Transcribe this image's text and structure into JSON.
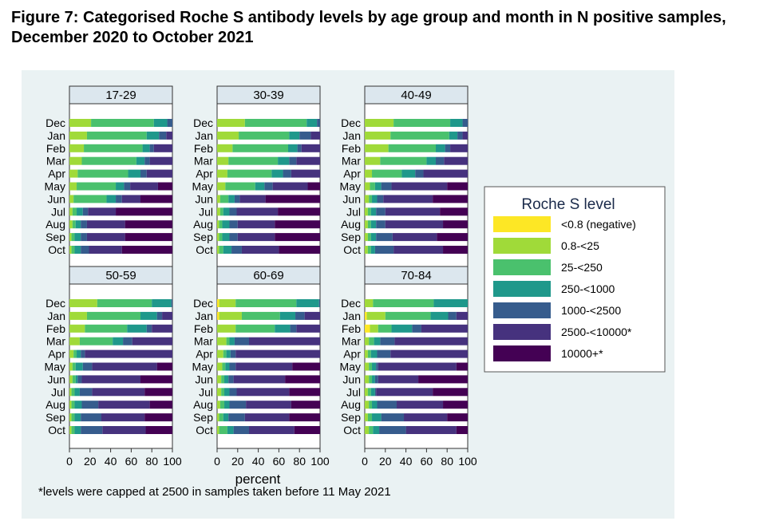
{
  "figure": {
    "title": "Figure 7: Categorised Roche S antibody levels by age group and month in N positive samples, December 2020 to October 2021",
    "footnote": "*levels were capped at 2500 in samples taken before 11 May 2021"
  },
  "chart_data": {
    "type": "bar",
    "orientation": "horizontal",
    "stacked": true,
    "title": "Figure 7: Categorised Roche S antibody levels by age group and month in N positive samples, December 2020 to October 2021",
    "xlabel": "percent",
    "xlim": [
      0,
      100
    ],
    "xticks": [
      0,
      20,
      40,
      60,
      80,
      100
    ],
    "grid": false,
    "legend_title": "Roche S level",
    "legend_position": "right",
    "categories": [
      "Dec",
      "Jan",
      "Feb",
      "Mar",
      "Apr",
      "May",
      "Jun",
      "Jul",
      "Aug",
      "Sep",
      "Oct"
    ],
    "levels": [
      {
        "name": "<0.8 (negative)",
        "color": "#fde725"
      },
      {
        "name": "0.8-<25",
        "color": "#a0da39"
      },
      {
        "name": "25-<250",
        "color": "#4ac16d"
      },
      {
        "name": "250-<1000",
        "color": "#1f988b"
      },
      {
        "name": "1000-<2500",
        "color": "#365c8d"
      },
      {
        "name": "2500-<10000*",
        "color": "#46327e"
      },
      {
        "name": "10000+*",
        "color": "#440154"
      }
    ],
    "panels": [
      {
        "name": "17-29",
        "values": [
          [
            0,
            21,
            61,
            13,
            5,
            0,
            0
          ],
          [
            0,
            17,
            58,
            12,
            7,
            6,
            0
          ],
          [
            0,
            14,
            57,
            7,
            4,
            18,
            0
          ],
          [
            0,
            12,
            53,
            8,
            5,
            22,
            0
          ],
          [
            0,
            8,
            49,
            12,
            6,
            25,
            0
          ],
          [
            0,
            7,
            38,
            8,
            6,
            27,
            14
          ],
          [
            0,
            4,
            32,
            9,
            6,
            18,
            31
          ],
          [
            0,
            3,
            4,
            6,
            5,
            27,
            55
          ],
          [
            0,
            3,
            3,
            5,
            6,
            37,
            46
          ],
          [
            0,
            2,
            3,
            6,
            6,
            37,
            46
          ],
          [
            0,
            2,
            3,
            6,
            8,
            32,
            49
          ]
        ]
      },
      {
        "name": "30-39",
        "values": [
          [
            0,
            27,
            60,
            10,
            3,
            0,
            0
          ],
          [
            0,
            21,
            49,
            10,
            11,
            9,
            0
          ],
          [
            0,
            15,
            54,
            9,
            4,
            18,
            0
          ],
          [
            0,
            11,
            48,
            11,
            7,
            23,
            0
          ],
          [
            0,
            10,
            43,
            11,
            8,
            28,
            0
          ],
          [
            0,
            8,
            29,
            9,
            8,
            34,
            12
          ],
          [
            0,
            3,
            8,
            6,
            5,
            25,
            53
          ],
          [
            0,
            3,
            3,
            6,
            7,
            40,
            41
          ],
          [
            0,
            2,
            3,
            7,
            8,
            36,
            44
          ],
          [
            0,
            2,
            3,
            7,
            8,
            36,
            44
          ],
          [
            0,
            2,
            4,
            8,
            10,
            36,
            40
          ]
        ]
      },
      {
        "name": "40-49",
        "values": [
          [
            0,
            28,
            55,
            12,
            5,
            0,
            0
          ],
          [
            0,
            25,
            57,
            8,
            5,
            5,
            0
          ],
          [
            0,
            23,
            46,
            9,
            5,
            17,
            0
          ],
          [
            0,
            15,
            45,
            9,
            8,
            23,
            0
          ],
          [
            0,
            7,
            29,
            13,
            8,
            43,
            0
          ],
          [
            0,
            5,
            5,
            6,
            10,
            54,
            20
          ],
          [
            0,
            4,
            3,
            5,
            6,
            48,
            34
          ],
          [
            0,
            3,
            3,
            5,
            9,
            53,
            27
          ],
          [
            0,
            3,
            3,
            5,
            9,
            56,
            24
          ],
          [
            0,
            3,
            3,
            5,
            16,
            43,
            30
          ],
          [
            0,
            3,
            3,
            4,
            18,
            48,
            24
          ]
        ]
      },
      {
        "name": "50-59",
        "values": [
          [
            0,
            27,
            53,
            19,
            1,
            0,
            0
          ],
          [
            0,
            17,
            52,
            16,
            5,
            10,
            0
          ],
          [
            0,
            15,
            41,
            19,
            5,
            20,
            0
          ],
          [
            0,
            10,
            32,
            10,
            9,
            39,
            0
          ],
          [
            0,
            4,
            3,
            4,
            4,
            85,
            0
          ],
          [
            0,
            3,
            3,
            7,
            9,
            63,
            15
          ],
          [
            0,
            3,
            3,
            2,
            4,
            57,
            31
          ],
          [
            0,
            2,
            3,
            5,
            12,
            51,
            27
          ],
          [
            0,
            2,
            3,
            7,
            16,
            50,
            22
          ],
          [
            0,
            2,
            3,
            6,
            20,
            42,
            27
          ],
          [
            0,
            2,
            3,
            6,
            21,
            42,
            26
          ]
        ]
      },
      {
        "name": "60-69",
        "values": [
          [
            2,
            16,
            59,
            22,
            1,
            0,
            0
          ],
          [
            2,
            22,
            37,
            15,
            9,
            15,
            0
          ],
          [
            0,
            18,
            38,
            15,
            6,
            23,
            0
          ],
          [
            0,
            9,
            3,
            5,
            14,
            69,
            0
          ],
          [
            0,
            6,
            3,
            4,
            5,
            82,
            0
          ],
          [
            0,
            5,
            3,
            4,
            6,
            55,
            27
          ],
          [
            0,
            4,
            3,
            4,
            5,
            50,
            34
          ],
          [
            0,
            4,
            3,
            5,
            7,
            51,
            30
          ],
          [
            0,
            3,
            4,
            5,
            16,
            44,
            28
          ],
          [
            0,
            2,
            4,
            5,
            16,
            43,
            30
          ],
          [
            0,
            2,
            8,
            6,
            15,
            44,
            25
          ]
        ]
      },
      {
        "name": "70-84",
        "values": [
          [
            0,
            8,
            59,
            33,
            0,
            0,
            0
          ],
          [
            2,
            18,
            44,
            17,
            8,
            11,
            0
          ],
          [
            5,
            8,
            13,
            20,
            9,
            45,
            0
          ],
          [
            0,
            4,
            5,
            6,
            14,
            71,
            0
          ],
          [
            0,
            3,
            3,
            6,
            13,
            75,
            0
          ],
          [
            0,
            4,
            3,
            4,
            2,
            76,
            11
          ],
          [
            0,
            4,
            3,
            3,
            3,
            39,
            48
          ],
          [
            0,
            3,
            3,
            4,
            1,
            55,
            34
          ],
          [
            0,
            4,
            3,
            5,
            19,
            45,
            24
          ],
          [
            0,
            3,
            4,
            9,
            22,
            42,
            20
          ],
          [
            0,
            4,
            4,
            6,
            26,
            49,
            11
          ]
        ]
      }
    ]
  }
}
